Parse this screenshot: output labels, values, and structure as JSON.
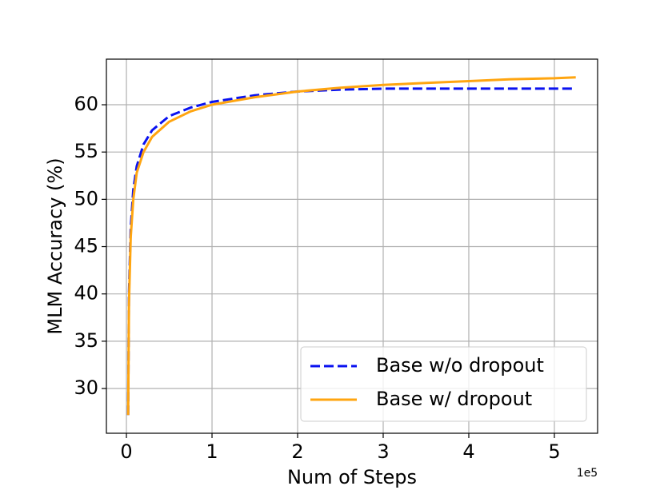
{
  "chart_data": {
    "type": "line",
    "x_label": "Num of Steps",
    "y_label": "MLM Accuracy (%)",
    "x_offset_label": "1e5",
    "x": [
      0.02,
      0.03,
      0.05,
      0.08,
      0.12,
      0.2,
      0.3,
      0.5,
      0.75,
      1.0,
      1.5,
      2.0,
      2.5,
      3.0,
      3.5,
      4.0,
      4.5,
      5.0,
      5.25
    ],
    "series": [
      {
        "name": "Base w/o dropout",
        "color": "#0a12f0",
        "linestyle": "dashed",
        "values": [
          27.2,
          40,
          47,
          51,
          53.5,
          55.8,
          57.3,
          58.8,
          59.7,
          60.3,
          61.0,
          61.4,
          61.6,
          61.7,
          61.7,
          61.7,
          61.7,
          61.7,
          61.7
        ]
      },
      {
        "name": "Base w/ dropout",
        "color": "#ffa510",
        "linestyle": "solid",
        "values": [
          27.2,
          39,
          46,
          50,
          52.8,
          55,
          56.6,
          58.2,
          59.3,
          60.0,
          60.8,
          61.4,
          61.8,
          62.1,
          62.3,
          62.5,
          62.7,
          62.8,
          62.9
        ]
      }
    ],
    "xlim": [
      -0.234,
      5.505
    ],
    "xticks": [
      0,
      1,
      2,
      3,
      4,
      5
    ],
    "ylim": [
      25.27,
      64.82
    ],
    "yticks": [
      30,
      35,
      40,
      45,
      50,
      55,
      60
    ],
    "grid": true,
    "legend": "lower right"
  }
}
